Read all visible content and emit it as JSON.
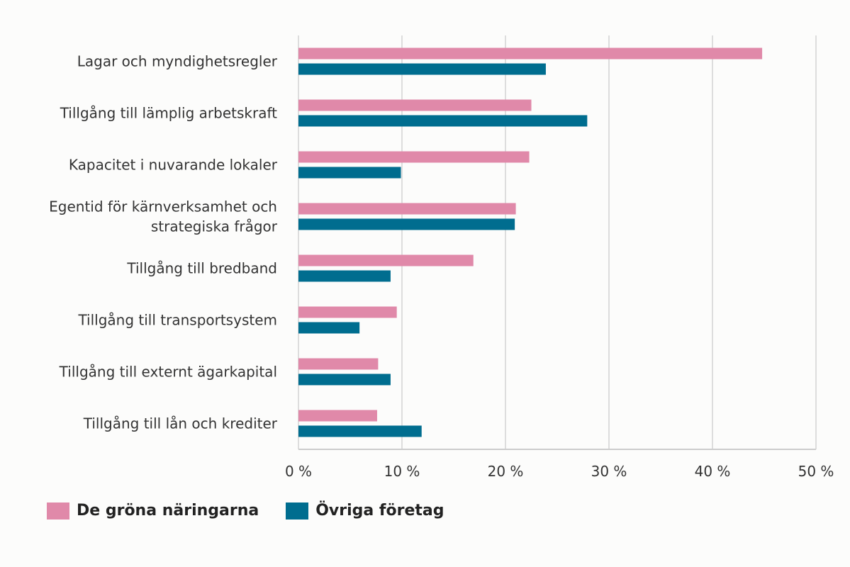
{
  "chart_data": {
    "type": "bar",
    "orientation": "horizontal",
    "categories": [
      [
        "Lagar och myndighetsregler"
      ],
      [
        "Tillgång till lämplig arbetskraft"
      ],
      [
        "Kapacitet i nuvarande lokaler"
      ],
      [
        "Egentid för kärnverksamhet och",
        "strategiska frågor"
      ],
      [
        "Tillgång till bredband"
      ],
      [
        "Tillgång till transportsystem"
      ],
      [
        "Tillgång till externt ägarkapital"
      ],
      [
        "Tillgång till lån och krediter"
      ]
    ],
    "series": [
      {
        "name": "De gröna näringarna",
        "color": "#e089a9",
        "values": [
          44.8,
          22.5,
          22.3,
          21.0,
          16.9,
          9.5,
          7.7,
          7.6
        ]
      },
      {
        "name": "Övriga företag",
        "color": "#006d8f",
        "values": [
          23.9,
          27.9,
          9.9,
          20.9,
          8.9,
          5.9,
          8.9,
          11.9
        ]
      }
    ],
    "x_ticks": [
      "0 %",
      "10 %",
      "20 %",
      "30 %",
      "40 %",
      "50 %"
    ],
    "xlim": [
      0,
      50
    ],
    "grid": true,
    "legend_position": "bottom-left"
  }
}
